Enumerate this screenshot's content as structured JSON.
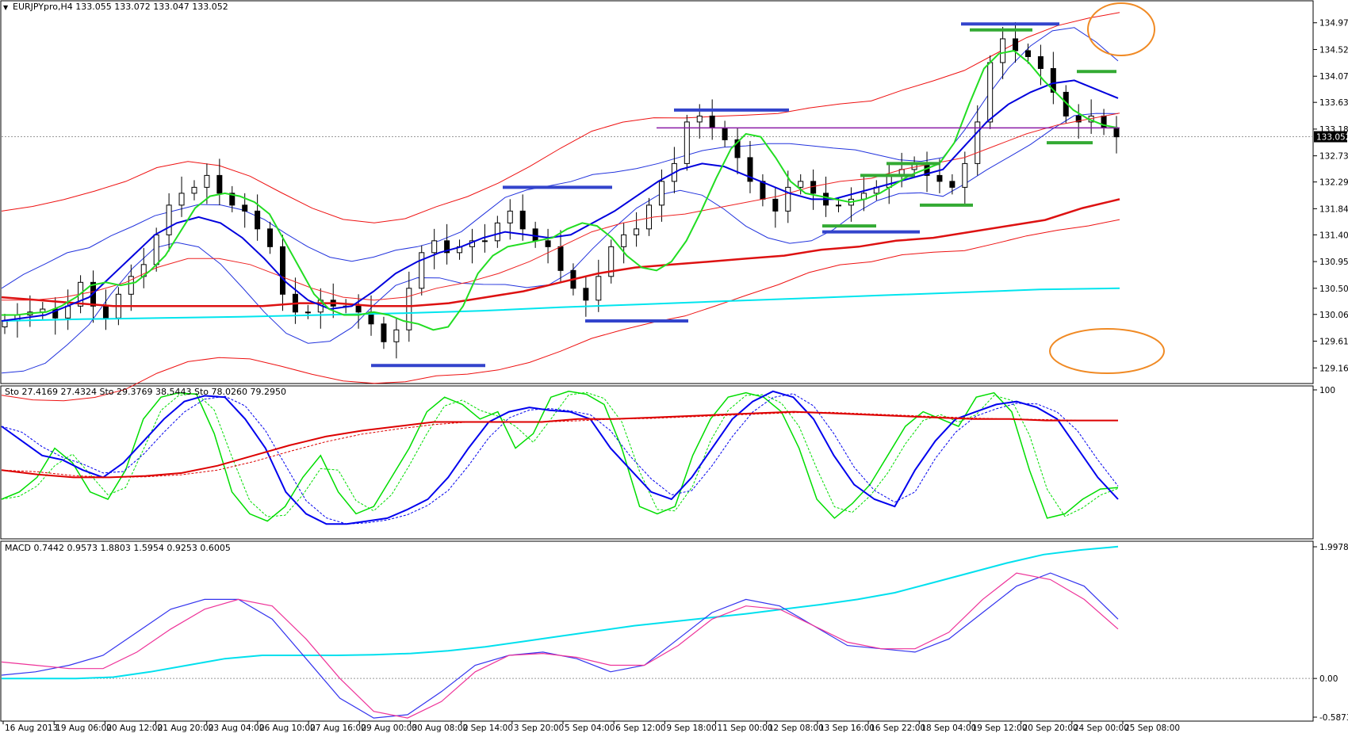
{
  "chart_data": [
    {
      "type": "line",
      "title": "EURJPYpro,H4",
      "header_values": "133.055 133.072 133.047 133.052",
      "ylim": [
        128.95,
        135.3
      ],
      "y_ticks": [
        "134.970",
        "134.520",
        "134.070",
        "133.630",
        "133.180",
        "132.730",
        "132.290",
        "131.840",
        "131.400",
        "130.950",
        "130.500",
        "130.060",
        "129.610",
        "129.160"
      ],
      "current_price": "133.052",
      "x_ticks": [
        "16 Aug 2013",
        "19 Aug 06:00",
        "20 Aug 12:00",
        "21 Aug 20:00",
        "23 Aug 04:00",
        "26 Aug 10:00",
        "27 Aug 16:00",
        "29 Aug 00:00",
        "30 Aug 08:00",
        "2 Sep 14:00",
        "3 Sep 20:00",
        "5 Sep 04:00",
        "6 Sep 12:00",
        "9 Sep 18:00",
        "11 Sep 00:00",
        "12 Sep 08:00",
        "13 Sep 16:00",
        "16 Sep 22:00",
        "18 Sep 04:00",
        "19 Sep 12:00",
        "20 Sep 20:00",
        "24 Sep 00:00",
        "25 Sep 08:00"
      ],
      "price_close": [
        129.95,
        130.05,
        130.1,
        130.15,
        130.0,
        130.2,
        130.6,
        130.2,
        130.0,
        130.4,
        130.7,
        130.9,
        131.4,
        131.9,
        132.1,
        132.2,
        132.4,
        132.1,
        131.9,
        131.8,
        131.5,
        131.2,
        130.4,
        130.1,
        130.1,
        130.3,
        130.2,
        130.2,
        130.1,
        129.9,
        129.6,
        129.8,
        130.5,
        131.1,
        131.3,
        131.1,
        131.2,
        131.3,
        131.3,
        131.6,
        131.8,
        131.5,
        131.3,
        131.2,
        130.8,
        130.5,
        130.3,
        130.7,
        131.2,
        131.4,
        131.5,
        131.9,
        132.3,
        132.6,
        133.3,
        133.4,
        133.2,
        133.0,
        132.7,
        132.3,
        132.0,
        131.8,
        132.2,
        132.3,
        132.1,
        131.9,
        131.9,
        132.0,
        132.1,
        132.2,
        132.4,
        132.5,
        132.6,
        132.4,
        132.3,
        132.2,
        132.6,
        133.3,
        134.3,
        134.7,
        134.5,
        134.4,
        134.2,
        133.8,
        133.4,
        133.3,
        133.4,
        133.2,
        133.05
      ],
      "ema_fast_green": [
        130.05,
        130.05,
        130.08,
        130.1,
        130.2,
        130.35,
        130.55,
        130.6,
        130.55,
        130.6,
        130.8,
        131.05,
        131.45,
        131.85,
        132.05,
        132.1,
        132.05,
        131.95,
        131.75,
        131.3,
        130.85,
        130.4,
        130.15,
        130.05,
        130.05,
        130.1,
        130.05,
        129.95,
        129.9,
        129.8,
        129.85,
        130.2,
        130.75,
        131.05,
        131.2,
        131.25,
        131.3,
        131.35,
        131.5,
        131.6,
        131.55,
        131.35,
        131.05,
        130.85,
        130.8,
        130.95,
        131.3,
        131.8,
        132.35,
        132.85,
        133.1,
        133.05,
        132.7,
        132.3,
        132.1,
        132.05,
        132.0,
        131.95,
        132.0,
        132.1,
        132.25,
        132.4,
        132.5,
        132.6,
        132.95,
        133.6,
        134.2,
        134.45,
        134.5,
        134.3,
        134.0,
        133.75,
        133.5,
        133.35,
        133.25,
        133.2
      ],
      "ma_blue": [
        129.95,
        130.0,
        130.05,
        130.2,
        130.35,
        130.7,
        131.05,
        131.4,
        131.6,
        131.7,
        131.6,
        131.35,
        131.0,
        130.6,
        130.3,
        130.15,
        130.2,
        130.45,
        130.75,
        130.95,
        131.1,
        131.2,
        131.35,
        131.45,
        131.4,
        131.35,
        131.4,
        131.6,
        131.8,
        132.05,
        132.3,
        132.5,
        132.6,
        132.55,
        132.4,
        132.25,
        132.1,
        132.0,
        132.0,
        132.1,
        132.2,
        132.3,
        132.4,
        132.5,
        132.9,
        133.3,
        133.6,
        133.8,
        133.95,
        134.0,
        133.85,
        133.7
      ],
      "ma_red_slow": [
        130.3,
        130.3,
        130.35,
        130.45,
        130.6,
        130.85,
        131.0,
        131.0,
        130.9,
        130.7,
        130.5,
        130.35,
        130.3,
        130.35,
        130.5,
        130.6,
        130.75,
        130.95,
        131.2,
        131.45,
        131.6,
        131.7,
        131.75,
        131.85,
        131.95,
        132.05,
        132.2,
        132.3,
        132.35,
        132.5,
        132.6,
        132.7,
        132.9,
        133.1,
        133.25,
        133.35,
        133.45
      ],
      "ma_red_thick": [
        130.35,
        130.3,
        130.25,
        130.2,
        130.2,
        130.2,
        130.2,
        130.2,
        130.25,
        130.25,
        130.2,
        130.2,
        130.25,
        130.35,
        130.45,
        130.6,
        130.75,
        130.85,
        130.9,
        130.95,
        131.0,
        131.05,
        131.15,
        131.2,
        131.3,
        131.35,
        131.45,
        131.55,
        131.65,
        131.85,
        132.0
      ],
      "ma_cyan": [
        129.95,
        129.98,
        130.0,
        130.02,
        130.05,
        130.08,
        130.12,
        130.18,
        130.23,
        130.28,
        130.33,
        130.38,
        130.43,
        130.48,
        130.5
      ],
      "horizontal_levels_price": [
        133.2
      ]
    },
    {
      "type": "line",
      "title": "Sto 27.4169 27.4324 Sto 29.3769 38.5443 Sto 78.0260 79.2950",
      "ylim": [
        0,
        100
      ],
      "y_ticks": [
        "100"
      ],
      "series": [
        {
          "color": "#00dd00",
          "values": [
            25,
            30,
            40,
            60,
            50,
            30,
            25,
            45,
            80,
            95,
            98,
            97,
            70,
            30,
            15,
            10,
            20,
            40,
            55,
            30,
            15,
            20,
            40,
            60,
            85,
            95,
            90,
            80,
            85,
            60,
            70,
            95,
            99,
            97,
            90,
            60,
            20,
            15,
            20,
            55,
            80,
            95,
            98,
            95,
            85,
            60,
            25,
            12,
            22,
            35,
            55,
            75,
            85,
            80,
            75,
            95,
            98,
            85,
            45,
            12,
            15,
            25,
            32,
            33
          ]
        },
        {
          "color": "#0000ee",
          "values": [
            75,
            65,
            55,
            52,
            45,
            40,
            50,
            65,
            80,
            92,
            96,
            95,
            80,
            60,
            30,
            15,
            8,
            8,
            10,
            12,
            18,
            25,
            40,
            60,
            78,
            85,
            88,
            86,
            85,
            80,
            60,
            45,
            30,
            25,
            40,
            60,
            80,
            92,
            99,
            95,
            80,
            55,
            35,
            25,
            20,
            45,
            65,
            80,
            85,
            90,
            92,
            88,
            80,
            60,
            40,
            25
          ]
        },
        {
          "color": "#dd0000",
          "values": [
            45,
            42,
            40,
            40,
            41,
            43,
            48,
            55,
            62,
            68,
            72,
            75,
            78,
            78,
            78,
            78,
            80,
            80,
            81,
            82,
            83,
            84,
            85,
            84,
            83,
            82,
            81,
            80,
            80,
            79,
            79,
            79
          ]
        }
      ]
    },
    {
      "type": "line",
      "title": "MACD 0.7442 0.9573 1.8803 1.5954 0.9253 0.6005",
      "ylim": [
        -0.5873,
        1.9978
      ],
      "y_ticks": [
        "1.9978",
        "0.00",
        "-0.5873"
      ],
      "series": [
        {
          "color": "#00e0ee",
          "values": [
            0.0,
            0.0,
            0.0,
            0.02,
            0.1,
            0.2,
            0.3,
            0.35,
            0.35,
            0.35,
            0.36,
            0.38,
            0.42,
            0.48,
            0.56,
            0.64,
            0.72,
            0.8,
            0.86,
            0.92,
            0.98,
            1.05,
            1.12,
            1.2,
            1.3,
            1.45,
            1.6,
            1.75,
            1.88,
            1.95,
            2.0
          ]
        },
        {
          "color": "#3333ee",
          "values": [
            0.05,
            0.1,
            0.2,
            0.35,
            0.7,
            1.05,
            1.2,
            1.2,
            0.9,
            0.3,
            -0.3,
            -0.6,
            -0.55,
            -0.2,
            0.2,
            0.35,
            0.4,
            0.3,
            0.1,
            0.2,
            0.6,
            1.0,
            1.2,
            1.1,
            0.8,
            0.5,
            0.45,
            0.4,
            0.6,
            1.0,
            1.4,
            1.6,
            1.4,
            0.9
          ]
        },
        {
          "color": "#ee3399",
          "values": [
            0.25,
            0.2,
            0.15,
            0.15,
            0.4,
            0.75,
            1.05,
            1.2,
            1.1,
            0.6,
            0.0,
            -0.5,
            -0.6,
            -0.35,
            0.1,
            0.35,
            0.38,
            0.32,
            0.2,
            0.2,
            0.5,
            0.9,
            1.1,
            1.05,
            0.8,
            0.55,
            0.45,
            0.45,
            0.7,
            1.2,
            1.6,
            1.5,
            1.2,
            0.75
          ]
        }
      ]
    }
  ]
}
